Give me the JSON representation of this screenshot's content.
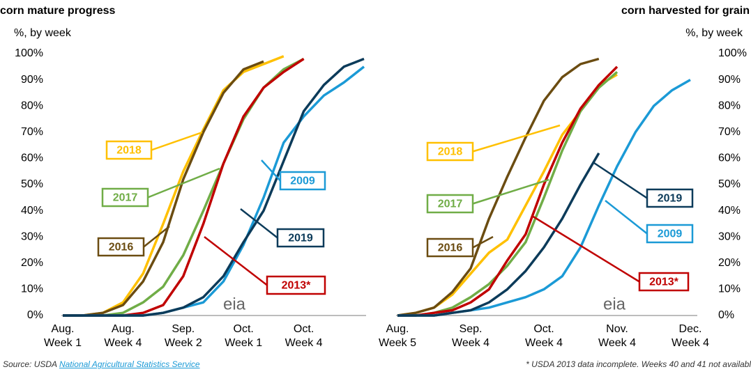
{
  "chart_data": [
    {
      "type": "line",
      "title": "corn mature progress",
      "subtitle": "%, by week",
      "logo": "eia",
      "grid": false,
      "yaxis_side": "left",
      "categories": [
        "Aug. Week 1",
        null,
        null,
        "Aug. Week 4",
        null,
        null,
        "Sep. Week 2",
        null,
        null,
        "Oct. Week 1",
        null,
        null,
        "Oct. Week 4",
        null,
        null,
        null
      ],
      "ylim": [
        0,
        100
      ],
      "yticks": [
        {
          "value": 0,
          "label": "0%"
        },
        {
          "value": 10,
          "label": "10%"
        },
        {
          "value": 20,
          "label": "20%"
        },
        {
          "value": 30,
          "label": "30%"
        },
        {
          "value": 40,
          "label": "40%"
        },
        {
          "value": 50,
          "label": "50%"
        },
        {
          "value": 60,
          "label": "60%"
        },
        {
          "value": 70,
          "label": "70%"
        },
        {
          "value": 80,
          "label": "80%"
        },
        {
          "value": 90,
          "label": "90%"
        },
        {
          "value": 100,
          "label": "100%"
        }
      ],
      "series": [
        {
          "name": "2018",
          "color": "#ffc000",
          "values": [
            0,
            0,
            1,
            5,
            16,
            35,
            55,
            71,
            86,
            93,
            96,
            99,
            null,
            null,
            null,
            null
          ]
        },
        {
          "name": "2017",
          "color": "#70ad47",
          "values": [
            0,
            0,
            0,
            1,
            5,
            11,
            23,
            40,
            58,
            75,
            87,
            94,
            98,
            null,
            null,
            null
          ]
        },
        {
          "name": "2016",
          "color": "#6b4c11",
          "values": [
            0,
            0,
            1,
            4,
            13,
            28,
            52,
            70,
            85,
            94,
            97,
            null,
            null,
            null,
            null,
            null
          ]
        },
        {
          "name": "2013*",
          "color": "#c00000",
          "values": [
            0,
            0,
            0,
            0,
            1,
            4,
            15,
            35,
            58,
            76,
            87,
            93,
            98,
            null,
            null,
            null
          ]
        },
        {
          "name": "2009",
          "color": "#1b9ad6",
          "values": [
            0,
            0,
            0,
            0,
            0,
            1,
            3,
            5,
            13,
            27,
            45,
            66,
            76,
            84,
            89,
            95
          ]
        },
        {
          "name": "2019",
          "color": "#0c3b5a",
          "values": [
            0,
            0,
            0,
            0,
            0,
            1,
            3,
            7,
            15,
            28,
            40,
            59,
            78,
            88,
            95,
            98
          ]
        }
      ]
    },
    {
      "type": "line",
      "title": "corn harvested for grain",
      "subtitle": "%, by week",
      "logo": "eia",
      "grid": false,
      "yaxis_side": "right",
      "categories": [
        "Aug. Week 5",
        null,
        null,
        null,
        "Sep. Week 4",
        null,
        null,
        null,
        "Oct. Week 4",
        null,
        null,
        null,
        "Nov. Week 4",
        null,
        null,
        null,
        "Dec. Week 4"
      ],
      "ylim": [
        0,
        100
      ],
      "yticks": [
        {
          "value": 0,
          "label": "0%"
        },
        {
          "value": 10,
          "label": "10%"
        },
        {
          "value": 20,
          "label": "20%"
        },
        {
          "value": 30,
          "label": "30%"
        },
        {
          "value": 40,
          "label": "40%"
        },
        {
          "value": 50,
          "label": "50%"
        },
        {
          "value": 60,
          "label": "60%"
        },
        {
          "value": 70,
          "label": "70%"
        },
        {
          "value": 80,
          "label": "80%"
        },
        {
          "value": 90,
          "label": "90%"
        },
        {
          "value": 100,
          "label": "100%"
        }
      ],
      "series": [
        {
          "name": "2018",
          "color": "#ffc000",
          "values": [
            0,
            1,
            3,
            8,
            16,
            24,
            29,
            42,
            55,
            69,
            78,
            88,
            92,
            null,
            null,
            null,
            null
          ]
        },
        {
          "name": "2017",
          "color": "#70ad47",
          "values": [
            0,
            0,
            1,
            3,
            7,
            12,
            19,
            28,
            45,
            63,
            78,
            87,
            93,
            null,
            null,
            null,
            null
          ]
        },
        {
          "name": "2016",
          "color": "#6b4c11",
          "values": [
            0,
            1,
            3,
            9,
            18,
            37,
            53,
            68,
            82,
            91,
            96,
            98,
            null,
            null,
            null,
            null,
            null
          ]
        },
        {
          "name": "2013*",
          "color": "#c00000",
          "values": [
            0,
            0,
            1,
            2,
            5,
            10,
            21,
            31,
            50,
            66,
            79,
            88,
            95,
            null,
            null,
            null,
            null
          ]
        },
        {
          "name": "2009",
          "color": "#1b9ad6",
          "values": [
            0,
            0,
            0,
            1,
            2,
            3,
            5,
            7,
            10,
            15,
            26,
            42,
            57,
            70,
            80,
            86,
            90
          ]
        },
        {
          "name": "2019",
          "color": "#0c3b5a",
          "values": [
            0,
            0,
            0,
            1,
            2,
            5,
            10,
            17,
            26,
            37,
            50,
            62,
            null,
            null,
            null,
            null,
            null
          ]
        }
      ]
    }
  ],
  "footer": {
    "source_prefix": "Source: USDA",
    "source_link": "National Agricultural Statistics Service",
    "note": "* USDA 2013 data incomplete. Weeks 40 and 41 not availabl"
  }
}
